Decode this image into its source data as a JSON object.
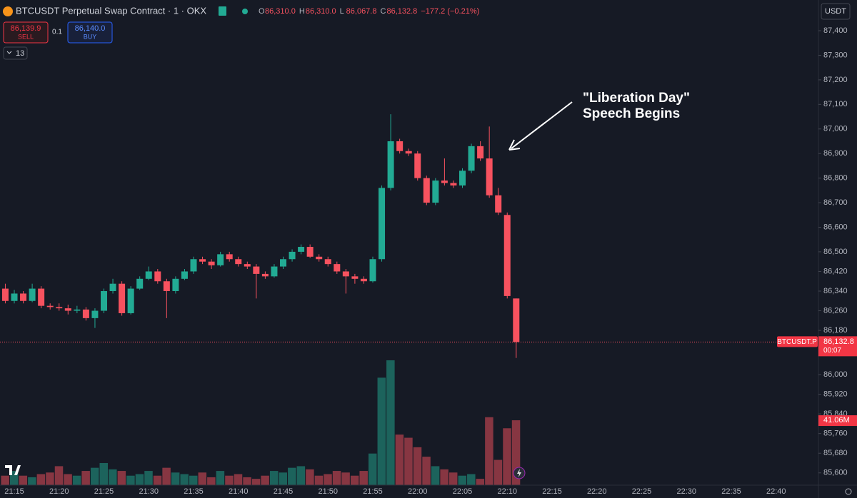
{
  "header": {
    "symbol_title": "BTCUSDT Perpetual Swap Contract · 1 · OKX",
    "ohlc": [
      {
        "key": "O",
        "label": "86,310.0"
      },
      {
        "key": "H",
        "label": "86,310.0"
      },
      {
        "key": "L",
        "label": "86,067.8"
      },
      {
        "key": "C",
        "label": "86,132.8"
      }
    ],
    "change": "−177.2 (−0.21%)",
    "sell_price": "86,139.9",
    "sell": "SELL",
    "quantity": "0.1",
    "buy_price": "86,140.0",
    "buy": "BUY",
    "indicators_count": "13",
    "currency": "USDT"
  },
  "chart_data": {
    "type": "candlestick",
    "annotation": [
      "\"Liberation Day\"",
      "Speech Begins"
    ],
    "categories": [
      null,
      "21:15",
      null,
      null,
      null,
      null,
      "21:20",
      null,
      null,
      null,
      null,
      "21:25",
      null,
      null,
      null,
      null,
      "21:30",
      null,
      null,
      null,
      null,
      "21:35",
      null,
      null,
      null,
      null,
      "21:40",
      null,
      null,
      null,
      null,
      "21:45",
      null,
      null,
      null,
      null,
      "21:50",
      null,
      null,
      null,
      null,
      "21:55",
      null,
      null,
      null,
      null,
      "22:00",
      null,
      null,
      null,
      null,
      "22:05",
      null,
      null,
      null,
      null,
      "22:10",
      null
    ],
    "future_labels": [
      "22:15",
      "22:20",
      "22:25",
      "22:30",
      "22:35",
      "22:40"
    ],
    "open": [
      86350,
      86300,
      86330,
      86300,
      86350,
      86280,
      86275,
      86270,
      86260,
      86265,
      86230,
      86260,
      86340,
      86370,
      86250,
      86350,
      86390,
      86420,
      86380,
      86340,
      86390,
      86420,
      86470,
      86460,
      86445,
      86490,
      86470,
      86450,
      86440,
      86410,
      86400,
      86440,
      86470,
      86500,
      86520,
      86480,
      86470,
      86450,
      86420,
      86400,
      86390,
      86380,
      86470,
      86760,
      86950,
      86910,
      86900,
      86800,
      86700,
      86790,
      86780,
      86770,
      86830,
      86930,
      86880,
      86730,
      86650,
      86310
    ],
    "high": [
      86370,
      86345,
      86340,
      86370,
      86360,
      86290,
      86290,
      86285,
      86280,
      86275,
      86270,
      86350,
      86390,
      86380,
      86360,
      86400,
      86440,
      86430,
      86390,
      86400,
      86430,
      86480,
      86480,
      86470,
      86500,
      86500,
      86480,
      86460,
      86450,
      86420,
      86450,
      86480,
      86510,
      86530,
      86530,
      86490,
      86480,
      86460,
      86430,
      86410,
      86400,
      86480,
      86770,
      87060,
      86960,
      86920,
      86910,
      86810,
      86800,
      86880,
      86790,
      86840,
      86940,
      86950,
      87010,
      86760,
      86660,
      86310
    ],
    "low": [
      86290,
      86290,
      86290,
      86295,
      86270,
      86265,
      86260,
      86245,
      86250,
      86220,
      86190,
      86250,
      86330,
      86240,
      86245,
      86345,
      86385,
      86370,
      86230,
      86330,
      86385,
      86410,
      86450,
      86430,
      86440,
      86460,
      86440,
      86430,
      86310,
      86390,
      86395,
      86430,
      86460,
      86490,
      86475,
      86460,
      86440,
      86410,
      86330,
      86370,
      86370,
      86375,
      86460,
      86750,
      86900,
      86890,
      86790,
      86690,
      86690,
      86770,
      86760,
      86760,
      86820,
      86870,
      86720,
      86650,
      86310,
      86067.8
    ],
    "close": [
      86300,
      86330,
      86300,
      86350,
      86280,
      86275,
      86270,
      86260,
      86265,
      86230,
      86260,
      86340,
      86370,
      86250,
      86350,
      86390,
      86420,
      86380,
      86340,
      86390,
      86420,
      86470,
      86460,
      86445,
      86490,
      86470,
      86450,
      86440,
      86410,
      86400,
      86440,
      86470,
      86500,
      86520,
      86480,
      86470,
      86450,
      86420,
      86400,
      86390,
      86380,
      86470,
      86760,
      86950,
      86910,
      86900,
      86800,
      86700,
      86790,
      86780,
      86770,
      86830,
      86930,
      86880,
      86730,
      86660,
      86320,
      86132.8
    ],
    "volume": [
      6,
      9,
      6,
      5,
      7,
      8,
      12,
      7,
      6,
      9,
      11,
      14,
      10,
      9,
      6,
      7,
      9,
      6,
      11,
      8,
      7,
      6,
      8,
      5,
      9,
      6,
      7,
      5,
      4,
      6,
      9,
      8,
      11,
      12,
      10,
      6,
      7,
      9,
      8,
      6,
      9,
      20,
      68,
      79,
      32,
      30,
      24,
      18,
      12,
      10,
      8,
      6,
      7,
      4,
      43,
      16,
      36,
      41.06
    ],
    "up_color": "#22ab94",
    "down_color": "#f7525f",
    "ylim": [
      85550,
      87525
    ],
    "yticks": [
      {
        "value": 87400,
        "label": "87,400"
      },
      {
        "value": 87300,
        "label": "87,300"
      },
      {
        "value": 87200,
        "label": "87,200"
      },
      {
        "value": 87100,
        "label": "87,100"
      },
      {
        "value": 87000,
        "label": "87,000"
      },
      {
        "value": 86900,
        "label": "86,900"
      },
      {
        "value": 86800,
        "label": "86,800"
      },
      {
        "value": 86700,
        "label": "86,700"
      },
      {
        "value": 86600,
        "label": "86,600"
      },
      {
        "value": 86500,
        "label": "86,500"
      },
      {
        "value": 86420,
        "label": "86,420"
      },
      {
        "value": 86340,
        "label": "86,340"
      },
      {
        "value": 86260,
        "label": "86,260"
      },
      {
        "value": 86180,
        "label": "86,180"
      },
      {
        "value": 86000,
        "label": "86,000"
      },
      {
        "value": 85920,
        "label": "85,920"
      },
      {
        "value": 85840,
        "label": "85,840"
      },
      {
        "value": 85760,
        "label": "85,760"
      },
      {
        "value": 85680,
        "label": "85,680"
      },
      {
        "value": 85600,
        "label": "85,600"
      }
    ],
    "grid": false,
    "price_tag": {
      "symbol": "BTCUSDT.P",
      "label": "86,132.8",
      "countdown": "00:07"
    },
    "volume_tag": "41.06M"
  }
}
